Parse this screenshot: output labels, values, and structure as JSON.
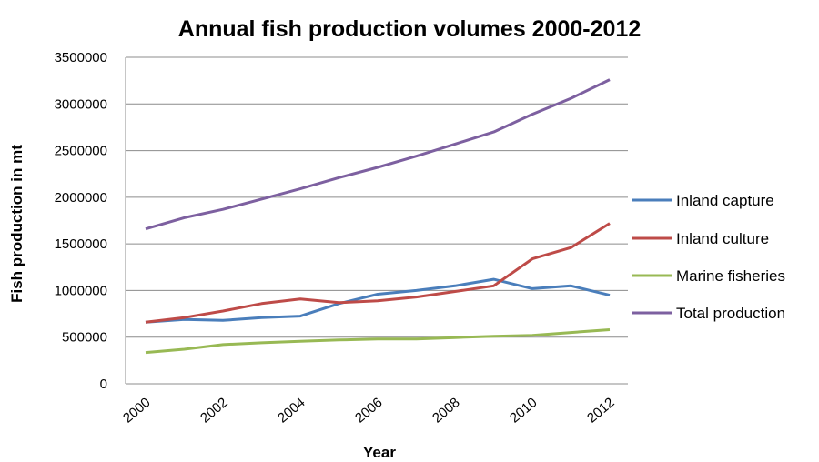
{
  "chart_data": {
    "type": "line",
    "title": "Annual fish production volumes 2000-2012",
    "xlabel": "Year",
    "ylabel": "Fish production in mt",
    "x": [
      2000,
      2001,
      2002,
      2003,
      2004,
      2005,
      2006,
      2007,
      2008,
      2009,
      2010,
      2011,
      2012
    ],
    "x_tick_labels": [
      "2000",
      "2002",
      "2004",
      "2006",
      "2008",
      "2010",
      "2012"
    ],
    "ylim": [
      0,
      3500000
    ],
    "y_tick_labels": [
      "0",
      "500000",
      "1000000",
      "1500000",
      "2000000",
      "2500000",
      "3000000",
      "3500000"
    ],
    "grid": "horizontal",
    "legend_position": "right",
    "series": [
      {
        "name": "Inland capture",
        "color": "#4a7ebb",
        "values": [
          660000,
          690000,
          680000,
          710000,
          725000,
          860000,
          960000,
          1000000,
          1050000,
          1120000,
          1020000,
          1050000,
          950000
        ]
      },
      {
        "name": "Inland culture",
        "color": "#be4b48",
        "values": [
          660000,
          710000,
          780000,
          860000,
          910000,
          870000,
          890000,
          930000,
          990000,
          1050000,
          1340000,
          1460000,
          1720000
        ]
      },
      {
        "name": "Marine fisheries",
        "color": "#98b954",
        "values": [
          335000,
          370000,
          420000,
          440000,
          455000,
          470000,
          480000,
          480000,
          495000,
          510000,
          520000,
          550000,
          580000
        ]
      },
      {
        "name": "Total production",
        "color": "#7d60a0",
        "values": [
          1660000,
          1780000,
          1870000,
          1980000,
          2090000,
          2210000,
          2320000,
          2440000,
          2570000,
          2700000,
          2890000,
          3060000,
          3260000
        ]
      }
    ]
  }
}
